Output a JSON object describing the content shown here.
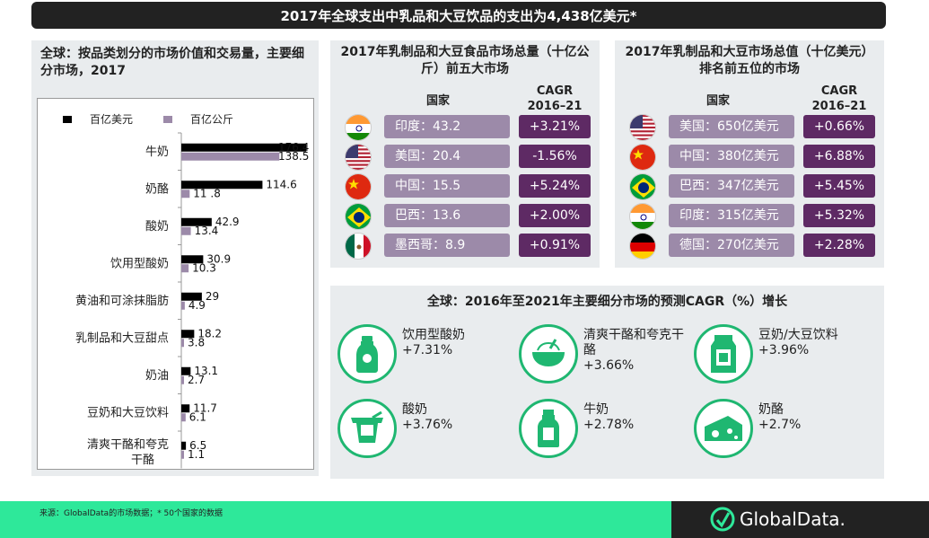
{
  "header": {
    "title": "2017年全球支出中乳品和大豆饮品的支出为4,438亿美元*"
  },
  "left_panel": {
    "title": "全球：按品类划分的市场价值和交易量，主要细分市场，2017"
  },
  "chart_data": {
    "type": "bar",
    "orientation": "horizontal",
    "title": "全球：按品类划分的市场价值和交易量，主要细分市场，2017",
    "categories": [
      "牛奶",
      "奶酪",
      "酸奶",
      "饮用型酸奶",
      "黄油和可涂抹脂肪",
      "乳制品和大豆甜点",
      "奶油",
      "豆奶和大豆饮料",
      "清爽干酪和夸克干酪"
    ],
    "series": [
      {
        "name": "百亿美元",
        "color": "#000000",
        "values": [
          176.4,
          114.6,
          42.9,
          30.9,
          29,
          18.2,
          13.1,
          11.7,
          6.5
        ],
        "labels": [
          "176.4",
          "114.6",
          "42.9",
          "30.9",
          "29",
          "18.2",
          "13.1",
          "11.7",
          "6.5"
        ]
      },
      {
        "name": "百亿公斤",
        "color": "#9c8aa9",
        "values": [
          138.5,
          11.8,
          13.4,
          10.3,
          4.9,
          3.8,
          2.7,
          6.1,
          1.1
        ],
        "labels": [
          "138.5",
          "11 .8",
          "13.4",
          "10.3",
          "4.9",
          "3.8",
          "2.7",
          "6.1",
          "1.1"
        ]
      }
    ],
    "xlim": [
      0,
      180
    ],
    "legend": "top"
  },
  "volume_panel": {
    "title": "2017年乳制品和大豆食品市场总量（十亿公斤）前五大市场",
    "col_country": "国家",
    "col_cagr": "CAGR\n2016–21",
    "rows": [
      {
        "flag": "india-flag-icon",
        "country": "印度：43.2",
        "cagr": "+3.21%"
      },
      {
        "flag": "usa-flag-icon",
        "country": "美国：20.4",
        "cagr": "-1.56%"
      },
      {
        "flag": "china-flag-icon",
        "country": "中国：15.5",
        "cagr": "+5.24%"
      },
      {
        "flag": "brazil-flag-icon",
        "country": "巴西：13.6",
        "cagr": "+2.00%"
      },
      {
        "flag": "mexico-flag-icon",
        "country": "墨西哥：8.9",
        "cagr": "+0.91%"
      }
    ]
  },
  "value_panel": {
    "title": "2017年乳制品和大豆市场总值（十亿美元）排名前五位的市场",
    "col_country": "国家",
    "col_cagr": "CAGR\n2016–21",
    "rows": [
      {
        "flag": "usa-flag-icon",
        "country": "美国：650亿美元",
        "cagr": "+0.66%"
      },
      {
        "flag": "china-flag-icon",
        "country": "中国：380亿美元",
        "cagr": "+6.88%"
      },
      {
        "flag": "brazil-flag-icon",
        "country": "巴西：347亿美元",
        "cagr": "+5.45%"
      },
      {
        "flag": "india-flag-icon",
        "country": "印度：315亿美元",
        "cagr": "+5.32%"
      },
      {
        "flag": "germany-flag-icon",
        "country": "德国：270亿美元",
        "cagr": "+2.28%"
      }
    ]
  },
  "growth_panel": {
    "title": "全球：2016年至2021年主要细分市场的预测CAGR（%）增长",
    "items": [
      {
        "icon": "drinking-yogurt-bottle-icon",
        "name": "饮用型酸奶",
        "value": "+7.31%"
      },
      {
        "icon": "fromage-frais-bowl-icon",
        "name": "清爽干酪和夸克干酪",
        "value": "+3.66%"
      },
      {
        "icon": "soy-milk-carton-icon",
        "name": "豆奶/大豆饮料",
        "value": "+3.96%"
      },
      {
        "icon": "yogurt-cup-icon",
        "name": "酸奶",
        "value": "+3.76%"
      },
      {
        "icon": "milk-bottle-icon",
        "name": "牛奶",
        "value": "+2.78%"
      },
      {
        "icon": "cheese-icon",
        "name": "奶酪",
        "value": "+2.7%"
      }
    ]
  },
  "footer": {
    "source": "来源：GlobalData的市场数据；* 50个国家的数据",
    "logo_text": "GlobalData."
  }
}
